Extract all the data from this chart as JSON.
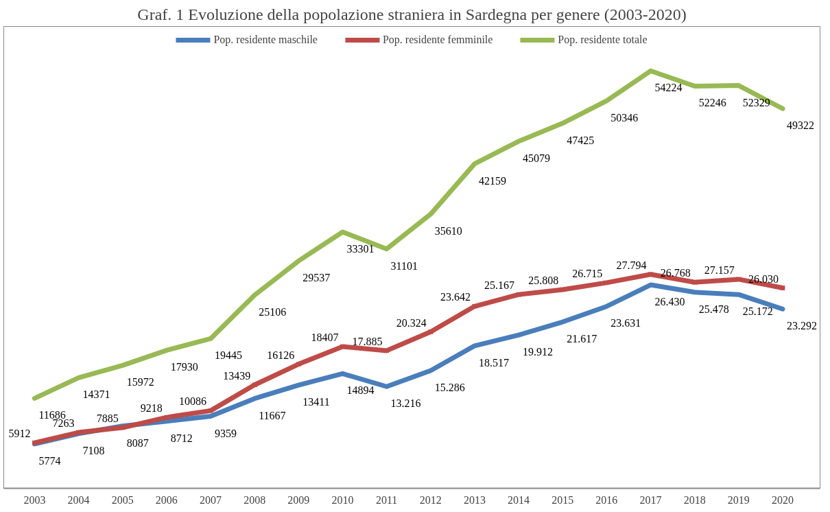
{
  "chart_data": {
    "type": "line",
    "title": "Graf. 1 Evoluzione della popolazione straniera in Sardegna per genere (2003-2020)",
    "categories": [
      "2003",
      "2004",
      "2005",
      "2006",
      "2007",
      "2008",
      "2009",
      "2010",
      "2011",
      "2012",
      "2013",
      "2014",
      "2015",
      "2016",
      "2017",
      "2018",
      "2019",
      "2020"
    ],
    "series": [
      {
        "name": "Pop. residente maschile",
        "color": "#4a7ebb",
        "marker": "none",
        "values": [
          5774,
          7108,
          8087,
          8712,
          9359,
          11667,
          13411,
          14894,
          13216,
          15286,
          18517,
          19912,
          21617,
          23631,
          26430,
          25478,
          25172,
          23292
        ],
        "value_labels": [
          "5774",
          "7108",
          "8087",
          "8712",
          "9359",
          "11667",
          "13411",
          "14894",
          "13.216",
          "15.286",
          "18.517",
          "19.912",
          "21.617",
          "23.631",
          "26.430",
          "25.478",
          "25.172",
          "23.292"
        ]
      },
      {
        "name": "Pop. residente femminile",
        "color": "#be4b48",
        "marker": "cross",
        "values": [
          5912,
          7263,
          7885,
          9218,
          10086,
          13439,
          16126,
          18407,
          17885,
          20324,
          23642,
          25167,
          25808,
          26715,
          27794,
          26768,
          27157,
          26030
        ],
        "value_labels": [
          "5912",
          "7263",
          "7885",
          "9218",
          "10086",
          "13439",
          "16126",
          "18407",
          "17.885",
          "20.324",
          "23.642",
          "25.167",
          "25.808",
          "26.715",
          "27.794",
          "26.768",
          "27.157",
          "26.030"
        ]
      },
      {
        "name": "Pop. residente totale",
        "color": "#98b954",
        "marker": "none",
        "values": [
          11686,
          14371,
          15972,
          17930,
          19445,
          25106,
          29537,
          33301,
          31101,
          35610,
          42159,
          45079,
          47425,
          50346,
          54224,
          52246,
          52329,
          49322
        ],
        "value_labels": [
          "11686",
          "14371",
          "15972",
          "17930",
          "19445",
          "25106",
          "29537",
          "33301",
          "31101",
          "35610",
          "42159",
          "45079",
          "47425",
          "50346",
          "54224",
          "52246",
          "52329",
          "49322"
        ]
      }
    ],
    "ylim": [
      0,
      60000
    ],
    "tick_labels": "x",
    "grid": false,
    "legend": "top",
    "line_style": "solid"
  }
}
